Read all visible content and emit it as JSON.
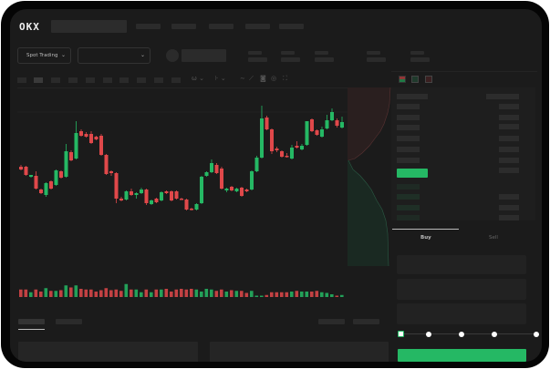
{
  "header": {
    "logo": "OKX"
  },
  "market": {
    "mode_label": "Spot Trading"
  },
  "order_form": {
    "tabs": [
      "Buy",
      "Sell"
    ],
    "slider_percent": 0
  },
  "colors": {
    "up": "#25b864",
    "down": "#e0484a",
    "background": "#1b1b1b",
    "accent": "#25b864"
  },
  "icons": [
    "chevron-down-icon",
    "orderbook-both-icon",
    "orderbook-buy-icon",
    "orderbook-sell-icon",
    "indicator-icon",
    "draw-line-icon",
    "ruler-icon",
    "camera-icon",
    "settings-icon",
    "fullscreen-icon"
  ],
  "chart_data": {
    "type": "candlestick",
    "candles": [
      [
        68,
        70,
        64,
        65
      ],
      [
        68,
        69,
        58,
        59
      ],
      [
        57,
        59,
        56,
        59
      ],
      [
        58,
        63,
        43,
        44
      ],
      [
        43,
        44,
        38,
        39
      ],
      [
        37,
        51,
        35,
        50
      ],
      [
        52,
        53,
        43,
        44
      ],
      [
        48,
        65,
        47,
        64
      ],
      [
        63,
        64,
        55,
        56
      ],
      [
        57,
        93,
        56,
        85
      ],
      [
        84,
        86,
        74,
        75
      ],
      [
        77,
        118,
        76,
        105
      ],
      [
        107,
        109,
        101,
        102
      ],
      [
        104,
        106,
        100,
        101
      ],
      [
        104,
        107,
        93,
        94
      ],
      [
        101,
        102,
        97,
        98
      ],
      [
        102,
        104,
        80,
        81
      ],
      [
        81,
        82,
        59,
        60
      ],
      [
        63,
        64,
        58,
        61
      ],
      [
        61,
        62,
        28,
        33
      ],
      [
        33,
        35,
        30,
        31
      ],
      [
        32,
        42,
        31,
        41
      ],
      [
        41,
        44,
        36,
        37
      ],
      [
        37,
        40,
        33,
        39
      ],
      [
        39,
        45,
        38,
        43
      ],
      [
        43,
        44,
        26,
        28
      ],
      [
        27,
        32,
        26,
        31
      ],
      [
        33,
        34,
        28,
        29
      ],
      [
        31,
        41,
        30,
        40
      ],
      [
        41,
        42,
        38,
        39
      ],
      [
        41,
        42,
        30,
        31
      ],
      [
        41,
        42,
        32,
        33
      ],
      [
        33,
        34,
        32,
        32
      ],
      [
        32,
        33,
        20,
        21
      ],
      [
        22,
        23,
        20,
        21
      ],
      [
        21,
        28,
        20,
        27
      ],
      [
        28,
        58,
        27,
        57
      ],
      [
        58,
        63,
        57,
        62
      ],
      [
        62,
        76,
        61,
        72
      ],
      [
        70,
        72,
        60,
        61
      ],
      [
        66,
        68,
        43,
        44
      ],
      [
        42,
        45,
        40,
        44
      ],
      [
        46,
        47,
        41,
        42
      ],
      [
        41,
        45,
        40,
        44
      ],
      [
        45,
        46,
        35,
        36
      ],
      [
        43,
        44,
        40,
        41
      ],
      [
        43,
        64,
        42,
        63
      ],
      [
        63,
        80,
        62,
        78
      ],
      [
        78,
        135,
        77,
        121
      ],
      [
        122,
        124,
        108,
        109
      ],
      [
        109,
        110,
        82,
        85
      ],
      [
        88,
        90,
        84,
        86
      ],
      [
        85,
        86,
        78,
        79
      ],
      [
        80,
        83,
        78,
        79
      ],
      [
        77,
        92,
        76,
        89
      ],
      [
        91,
        96,
        88,
        89
      ],
      [
        87,
        93,
        86,
        91
      ],
      [
        92,
        118,
        91,
        118
      ],
      [
        120,
        121,
        106,
        107
      ],
      [
        108,
        109,
        102,
        103
      ],
      [
        101,
        112,
        100,
        109
      ],
      [
        110,
        125,
        109,
        119
      ],
      [
        119,
        132,
        118,
        128
      ],
      [
        119,
        121,
        111,
        113
      ],
      [
        111,
        123,
        110,
        117
      ]
    ],
    "candle_format": [
      "open",
      "high",
      "low",
      "close"
    ],
    "volume": [
      11,
      11,
      7,
      11,
      8,
      13,
      9,
      9,
      10,
      17,
      14,
      17,
      12,
      11,
      11,
      8,
      10,
      13,
      10,
      11,
      9,
      19,
      11,
      11,
      7,
      11,
      7,
      11,
      11,
      12,
      8,
      11,
      12,
      11,
      12,
      11,
      8,
      12,
      11,
      9,
      11,
      8,
      10,
      9,
      9,
      6,
      9,
      2,
      2,
      3,
      7,
      7,
      7,
      7,
      8,
      9,
      8,
      8,
      8,
      9,
      7,
      6,
      4,
      2,
      3
    ],
    "grid": false
  }
}
